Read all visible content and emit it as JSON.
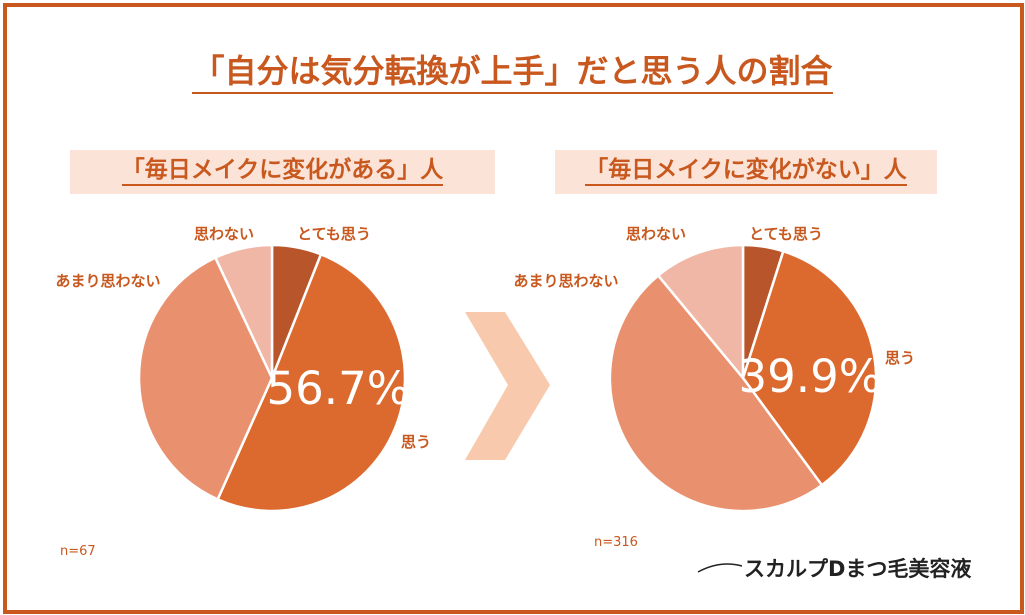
{
  "title": "「自分は気分転換が上手」だと思う人の割合",
  "brand": "スカルプDまつ毛美容液",
  "colors": {
    "frame": "#c8581e",
    "band": "#fbe3d7",
    "arrow": "#f9c9ad"
  },
  "chart_data": [
    {
      "type": "pie",
      "title": "「毎日メイクに変化がある」人",
      "n_label": "n=67",
      "highlight_label": "56.7%",
      "slices": [
        {
          "label": "とても思う",
          "value": 6.0,
          "color": "#b8552a"
        },
        {
          "label": "思う",
          "value": 50.7,
          "color": "#dc6a2e"
        },
        {
          "label": "あまり思わない",
          "value": 36.3,
          "color": "#e9916f"
        },
        {
          "label": "思わない",
          "value": 7.0,
          "color": "#f1b7a6"
        }
      ]
    },
    {
      "type": "pie",
      "title": "「毎日メイクに変化がない」人",
      "n_label": "n=316",
      "highlight_label": "39.9%",
      "slices": [
        {
          "label": "とても思う",
          "value": 4.9,
          "color": "#b8552a"
        },
        {
          "label": "思う",
          "value": 35.0,
          "color": "#dc6a2e"
        },
        {
          "label": "あまり思わない",
          "value": 49.1,
          "color": "#e9916f"
        },
        {
          "label": "思わない",
          "value": 11.0,
          "color": "#f1b7a6"
        }
      ]
    }
  ]
}
